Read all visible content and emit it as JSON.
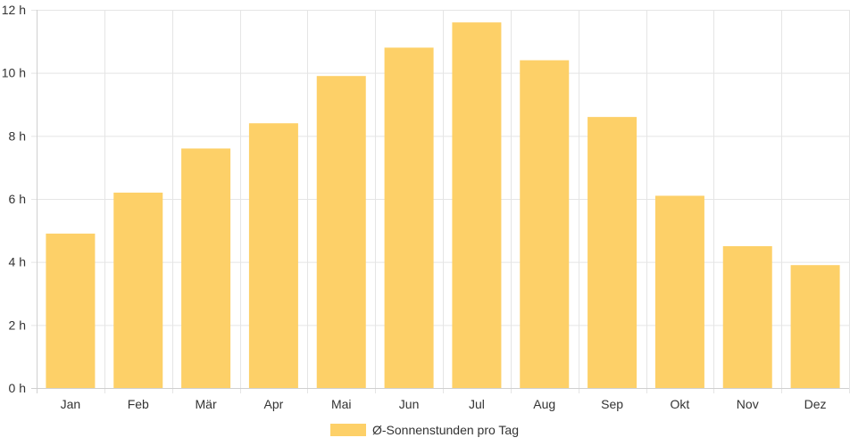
{
  "chart_data": {
    "type": "bar",
    "categories": [
      "Jan",
      "Feb",
      "Mär",
      "Apr",
      "Mai",
      "Jun",
      "Jul",
      "Aug",
      "Sep",
      "Okt",
      "Nov",
      "Dez"
    ],
    "series": [
      {
        "name": "Ø-Sonnenstunden pro Tag",
        "values": [
          4.9,
          6.2,
          7.6,
          8.4,
          9.9,
          10.8,
          11.6,
          10.4,
          8.6,
          6.1,
          4.5,
          3.9
        ],
        "color": "#fdd068"
      }
    ],
    "y_ticks": [
      "0 h",
      "2 h",
      "4 h",
      "6 h",
      "8 h",
      "10 h",
      "12 h"
    ],
    "ylim": [
      0,
      12
    ],
    "grid": true,
    "legend_position": "bottom"
  }
}
